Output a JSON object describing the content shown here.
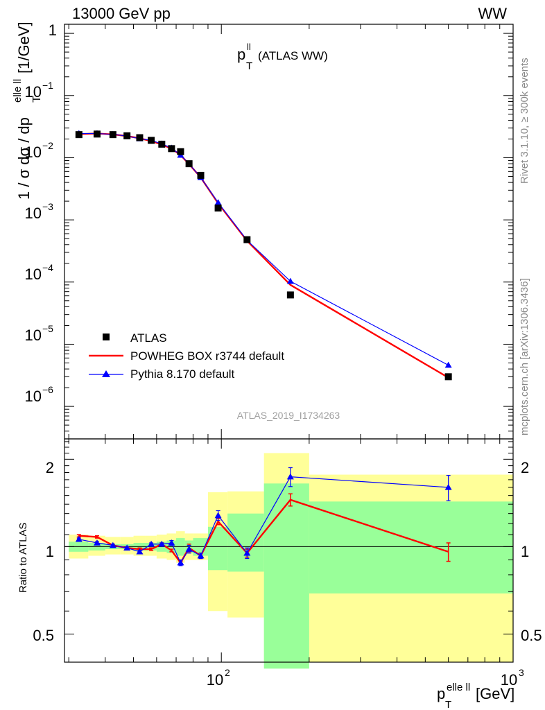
{
  "header": {
    "beam": "13000 GeV pp",
    "process": "WW",
    "rivet": "Rivet 3.1.10, ≥ 300k events",
    "source": "mcplots.cern.ch [arXiv:1306.3436]",
    "analysis": "ATLAS_2019_I1734263"
  },
  "main_plot": {
    "title_main": "p",
    "title_sup": "ll",
    "title_sub": "T",
    "title_suffix": "(ATLAS WW)",
    "ylabel_a": "1 / σ  dσ / dp",
    "ylabel_sub": "T",
    "ylabel_sup": "elle ll",
    "ylabel_unit": "[1/GeV]",
    "ytick_labels": [
      "1",
      "10",
      "10",
      "10",
      "10",
      "10",
      "10"
    ],
    "ytick_exps": [
      "",
      "−1",
      "−2",
      "−3",
      "−4",
      "−5",
      "−6"
    ]
  },
  "ratio_plot": {
    "ylabel": "Ratio to ATLAS",
    "ytick_labels": [
      "2",
      "1",
      "0.5"
    ]
  },
  "xaxis": {
    "label_main": "p",
    "label_sup": "elle ll",
    "label_sub": "T",
    "label_unit": "[GeV]",
    "tick_labels": [
      "10",
      "10"
    ],
    "tick_exps": [
      "2",
      "3"
    ]
  },
  "colors": {
    "data": "#000000",
    "powheg": "#ff0000",
    "pythia": "#0000ff",
    "band_inner": "#99ff99",
    "band_outer": "#ffff99"
  },
  "chart_data": [
    {
      "type": "scatter",
      "title": "p_T^ll (ATLAS WW)",
      "xlabel": "p_T^elle ll [GeV]",
      "ylabel": "1 / σ dσ / dp_T^elle ll [1/GeV]",
      "xscale": "log",
      "yscale": "log",
      "xlim": [
        29,
        1000
      ],
      "ylim": [
        3e-07,
        1.4
      ],
      "legend_position": "bottom-left",
      "x": [
        32.5,
        37.5,
        42.5,
        47.5,
        52.5,
        57.5,
        62.5,
        67.5,
        72.5,
        77.5,
        85,
        97.5,
        122.5,
        172.5,
        600
      ],
      "series": [
        {
          "name": "ATLAS",
          "marker": "square",
          "values": [
            0.0235,
            0.024,
            0.0235,
            0.0225,
            0.021,
            0.019,
            0.0165,
            0.014,
            0.0125,
            0.008,
            0.0052,
            0.00155,
            0.00048,
            6.2e-05,
            3e-06
          ]
        },
        {
          "name": "POWHEG BOX r3744 default",
          "marker": "line",
          "values": [
            0.024,
            0.0245,
            0.0237,
            0.0223,
            0.0205,
            0.0185,
            0.0163,
            0.014,
            0.011,
            0.0079,
            0.0048,
            0.00185,
            0.00046,
            9e-05,
            2.9e-06
          ]
        },
        {
          "name": "Pythia 8.170 default",
          "marker": "triangle",
          "values": [
            0.0245,
            0.0245,
            0.0237,
            0.0223,
            0.0202,
            0.019,
            0.0167,
            0.0143,
            0.011,
            0.008,
            0.0048,
            0.0019,
            0.00047,
            0.000103,
            4.6e-06
          ]
        }
      ]
    },
    {
      "type": "line",
      "ylabel": "Ratio to ATLAS",
      "xscale": "log",
      "yscale": "log",
      "xlim": [
        29,
        1000
      ],
      "ylim": [
        0.4,
        2.35
      ],
      "x": [
        32.5,
        37.5,
        42.5,
        47.5,
        52.5,
        57.5,
        62.5,
        67.5,
        72.5,
        77.5,
        85,
        97.5,
        122.5,
        172.5,
        600
      ],
      "bin_edges": [
        30,
        35,
        40,
        45,
        50,
        55,
        60,
        65,
        70,
        75,
        80,
        90,
        105,
        140,
        200,
        1000
      ],
      "band_inner_low": [
        0.96,
        0.97,
        0.98,
        0.98,
        0.97,
        0.97,
        0.96,
        0.95,
        0.93,
        0.95,
        0.93,
        0.83,
        0.82,
        0.38,
        0.69
      ],
      "band_inner_high": [
        1.04,
        1.03,
        1.02,
        1.02,
        1.03,
        1.03,
        1.04,
        1.05,
        1.07,
        1.05,
        1.07,
        1.17,
        1.3,
        1.65,
        1.43
      ],
      "band_outer_low": [
        0.91,
        0.93,
        0.94,
        0.94,
        0.93,
        0.93,
        0.91,
        0.9,
        0.88,
        0.9,
        0.9,
        0.6,
        0.57,
        0.37,
        0.37
      ],
      "band_outer_high": [
        1.1,
        1.09,
        1.08,
        1.08,
        1.09,
        1.09,
        1.1,
        1.11,
        1.13,
        1.11,
        1.11,
        1.54,
        1.55,
        2.1,
        1.77
      ],
      "series": [
        {
          "name": "POWHEG BOX r3744 default",
          "values": [
            1.09,
            1.08,
            1.01,
            0.99,
            0.98,
            0.98,
            1.02,
            0.97,
            0.88,
            0.99,
            0.93,
            1.22,
            0.95,
            1.45,
            0.96
          ],
          "err": [
            0.01,
            0.01,
            0.01,
            0.01,
            0.01,
            0.01,
            0.01,
            0.01,
            0.01,
            0.03,
            0.02,
            0.03,
            0.03,
            0.07,
            0.07
          ]
        },
        {
          "name": "Pythia 8.170 default",
          "values": [
            1.06,
            1.03,
            1.01,
            0.99,
            0.96,
            1.02,
            1.02,
            1.03,
            0.88,
            0.98,
            0.93,
            1.28,
            0.95,
            1.74,
            1.6
          ],
          "err": [
            0.01,
            0.01,
            0.01,
            0.01,
            0.01,
            0.01,
            0.01,
            0.02,
            0.02,
            0.03,
            0.02,
            0.05,
            0.04,
            0.13,
            0.16
          ]
        }
      ]
    }
  ]
}
